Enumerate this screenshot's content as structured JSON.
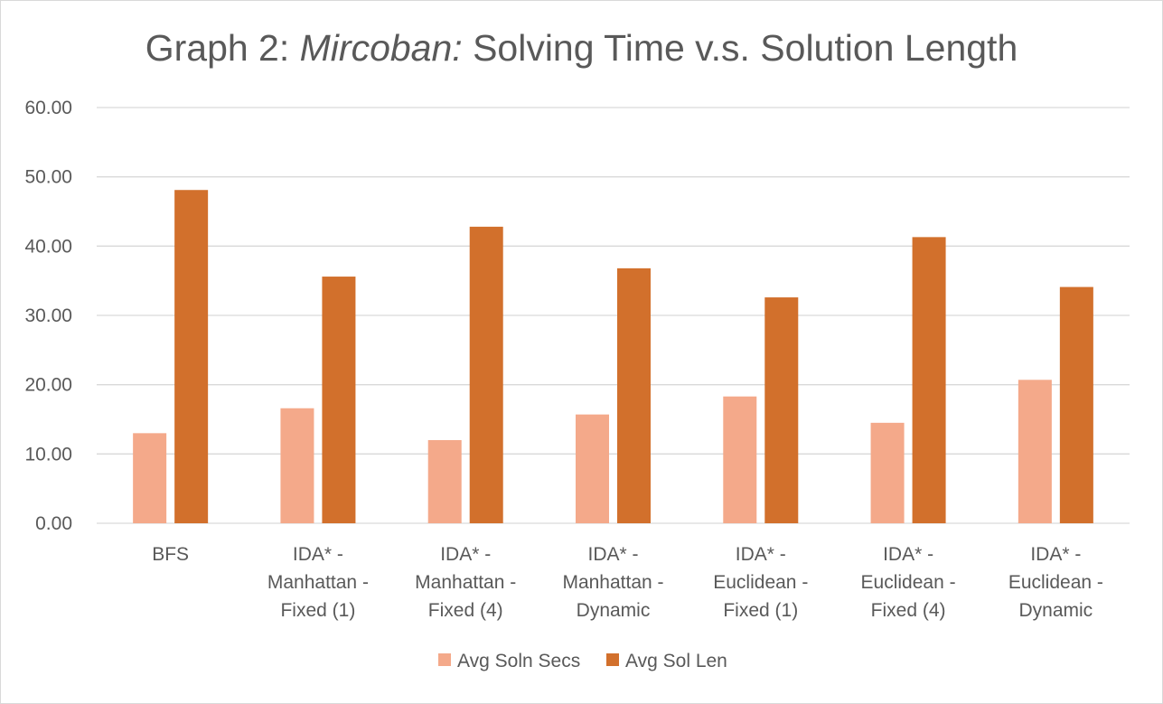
{
  "chart_data": {
    "type": "bar",
    "title_prefix": "Graph 2: ",
    "title_italic": "Mircoban:",
    "title_suffix": " Solving Time v.s. Solution Length",
    "xlabel": "",
    "ylabel": "",
    "ylim": [
      0,
      60
    ],
    "yticks": [
      0,
      10,
      20,
      30,
      40,
      50,
      60
    ],
    "ytick_labels": [
      "0.00",
      "10.00",
      "20.00",
      "30.00",
      "40.00",
      "50.00",
      "60.00"
    ],
    "grid": true,
    "legend_position": "bottom",
    "categories": [
      [
        "BFS"
      ],
      [
        "IDA* -",
        "Manhattan -",
        "Fixed (1)"
      ],
      [
        "IDA* -",
        "Manhattan -",
        "Fixed (4)"
      ],
      [
        "IDA* -",
        "Manhattan -",
        "Dynamic"
      ],
      [
        "IDA* -",
        "Euclidean -",
        "Fixed (1)"
      ],
      [
        "IDA* -",
        "Euclidean -",
        "Fixed (4)"
      ],
      [
        "IDA* -",
        "Euclidean -",
        "Dynamic"
      ]
    ],
    "series": [
      {
        "name": "Avg Soln Secs",
        "color": "#f4a98a",
        "values": [
          13.0,
          16.6,
          12.0,
          15.7,
          18.3,
          14.5,
          20.7
        ]
      },
      {
        "name": "Avg Sol Len",
        "color": "#d2702c",
        "values": [
          48.1,
          35.6,
          42.8,
          36.8,
          32.6,
          41.3,
          34.1
        ]
      }
    ],
    "colors": {
      "grid": "#d9d9d9",
      "text": "#595959"
    }
  }
}
